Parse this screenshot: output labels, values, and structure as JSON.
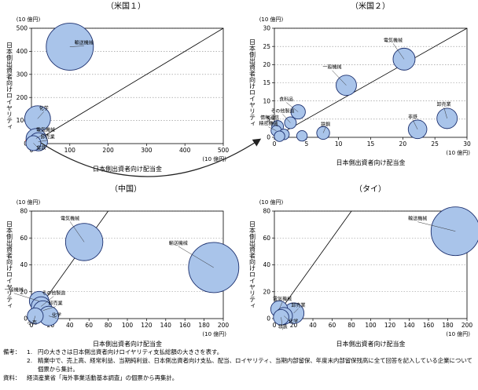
{
  "chart_data": [
    {
      "type": "scatter",
      "title": "（米国１）",
      "ylabel": "日本側出資者向けロイヤリティ",
      "ylabel_unit": "(10 億円)",
      "xlabel": "日本側出資者向け配当金",
      "xlabel_unit": "(10 億円)",
      "xlim": [
        0,
        500
      ],
      "ylim": [
        0,
        500
      ],
      "xticks": [
        0,
        100,
        200,
        300,
        400,
        500
      ],
      "yticks": [
        0,
        100,
        200,
        300,
        400,
        500
      ],
      "grid": "horizontal-dotted",
      "diagonal": "y = x",
      "points": [
        {
          "label": "輸送機械",
          "x": 100,
          "y": 420,
          "size": 100
        },
        {
          "label": "化学",
          "x": 16,
          "y": 108,
          "size": 30
        },
        {
          "label": "電気機械",
          "x": 12,
          "y": 22,
          "size": 18
        },
        {
          "label": "卸売業",
          "x": 18,
          "y": 8,
          "size": 15
        },
        {
          "label": "非鉄",
          "x": 5,
          "y": 2,
          "size": 10
        }
      ],
      "highlight_region": {
        "x": 8,
        "y": 8
      }
    },
    {
      "type": "scatter",
      "title": "（米国２）",
      "ylabel": "日本側出資者向けロイヤリティ",
      "ylabel_unit": "(10 億円)",
      "xlabel": "日本側出資者向け配当金",
      "xlabel_unit": "(10 億円)",
      "xlim": [
        0,
        30
      ],
      "ylim": [
        0,
        30
      ],
      "xticks": [
        0,
        5,
        10,
        15,
        20,
        25,
        30
      ],
      "yticks": [
        0,
        5,
        10,
        15,
        20,
        25,
        30
      ],
      "grid": "horizontal-dotted",
      "diagonal": "y = x",
      "points": [
        {
          "label": "電気機械",
          "x": 20.2,
          "y": 21.5,
          "size": 35
        },
        {
          "label": "一般機械",
          "x": 11.2,
          "y": 14.3,
          "size": 30
        },
        {
          "label": "食料品",
          "x": 3.7,
          "y": 7.0,
          "size": 15
        },
        {
          "label": "その他製造",
          "x": 2.5,
          "y": 4.0,
          "size": 10
        },
        {
          "label": "情報通信",
          "x": 0.5,
          "y": 3.0,
          "size": 10
        },
        {
          "label": "精密機械",
          "x": 0.3,
          "y": 1.8,
          "size": 8
        },
        {
          "label": "鉄鋼",
          "x": 7.6,
          "y": 1.2,
          "size": 12
        },
        {
          "label": "非鉄",
          "x": 22.3,
          "y": 2.2,
          "size": 25
        },
        {
          "label": "卸売業",
          "x": 26.9,
          "y": 5.2,
          "size": 30
        },
        {
          "label": "",
          "x": 4.3,
          "y": 0.4,
          "size": 8
        },
        {
          "label": "",
          "x": 1.5,
          "y": 0.8,
          "size": 8
        },
        {
          "label": "",
          "x": 0.8,
          "y": 0.3,
          "size": 8
        }
      ]
    },
    {
      "type": "scatter",
      "title": "（中国）",
      "ylabel": "日本側出資者向けロイヤリティ",
      "ylabel_unit": "(10 億円)",
      "xlabel": "日本側出資者向け配当金",
      "xlabel_unit": "(10 億円)",
      "xlim": [
        0,
        200
      ],
      "ylim": [
        0,
        80
      ],
      "xticks": [
        0,
        20,
        40,
        60,
        80,
        100,
        120,
        140,
        160,
        180,
        200
      ],
      "yticks": [
        0,
        20,
        40,
        60,
        80
      ],
      "grid": "horizontal-dotted",
      "diagonal": "y = x",
      "points": [
        {
          "label": "電気機械",
          "x": 55,
          "y": 57,
          "size": 55
        },
        {
          "label": "輸送機械",
          "x": 190,
          "y": 38,
          "size": 100
        },
        {
          "label": "一般機械",
          "x": 8,
          "y": 13,
          "size": 15
        },
        {
          "label": "その他製造",
          "x": 10,
          "y": 9,
          "size": 15
        },
        {
          "label": "卸売業",
          "x": 12,
          "y": 6,
          "size": 15
        },
        {
          "label": "化学",
          "x": 18,
          "y": 2,
          "size": 15
        },
        {
          "label": "小売",
          "x": 4,
          "y": 2,
          "size": 10
        }
      ]
    },
    {
      "type": "scatter",
      "title": "（タイ）",
      "ylabel": "日本側出資者向けロイヤリティ",
      "ylabel_unit": "(10 億円)",
      "xlabel": "日本側出資者向け配当金",
      "xlabel_unit": "(10 億円)",
      "xlim": [
        0,
        200
      ],
      "ylim": [
        0,
        80
      ],
      "xticks": [
        0,
        20,
        40,
        60,
        80,
        100,
        120,
        140,
        160,
        180,
        200
      ],
      "yticks": [
        0,
        20,
        40,
        60,
        80
      ],
      "grid": "horizontal-dotted",
      "diagonal": "y = x",
      "points": [
        {
          "label": "輸送機械",
          "x": 188,
          "y": 65,
          "size": 100
        },
        {
          "label": "電気機械",
          "x": 5,
          "y": 7,
          "size": 12
        },
        {
          "label": "卸売業",
          "x": 20,
          "y": 4,
          "size": 18
        },
        {
          "label": "化学",
          "x": 10,
          "y": 2,
          "size": 12
        },
        {
          "label": "非鉄",
          "x": 7,
          "y": 1,
          "size": 10
        }
      ]
    }
  ],
  "notes": {
    "head": "備考：",
    "items": [
      {
        "num": "1.",
        "text": "円の大きさは日本側出資者向けロイヤリティ支払総額の大きさを表す。"
      },
      {
        "num": "2.",
        "text": "精業中で、売上高、経常利益、当期純利益、日本側出資者向け支払、配当、ロイヤリティ、当期内部留保、年度末内部留保残高に全て回答を記入している企業について個票から集計。"
      }
    ],
    "source_head": "資料：",
    "source": "経済産業省「海外事業活動基本調査」の個票から再集計。"
  }
}
